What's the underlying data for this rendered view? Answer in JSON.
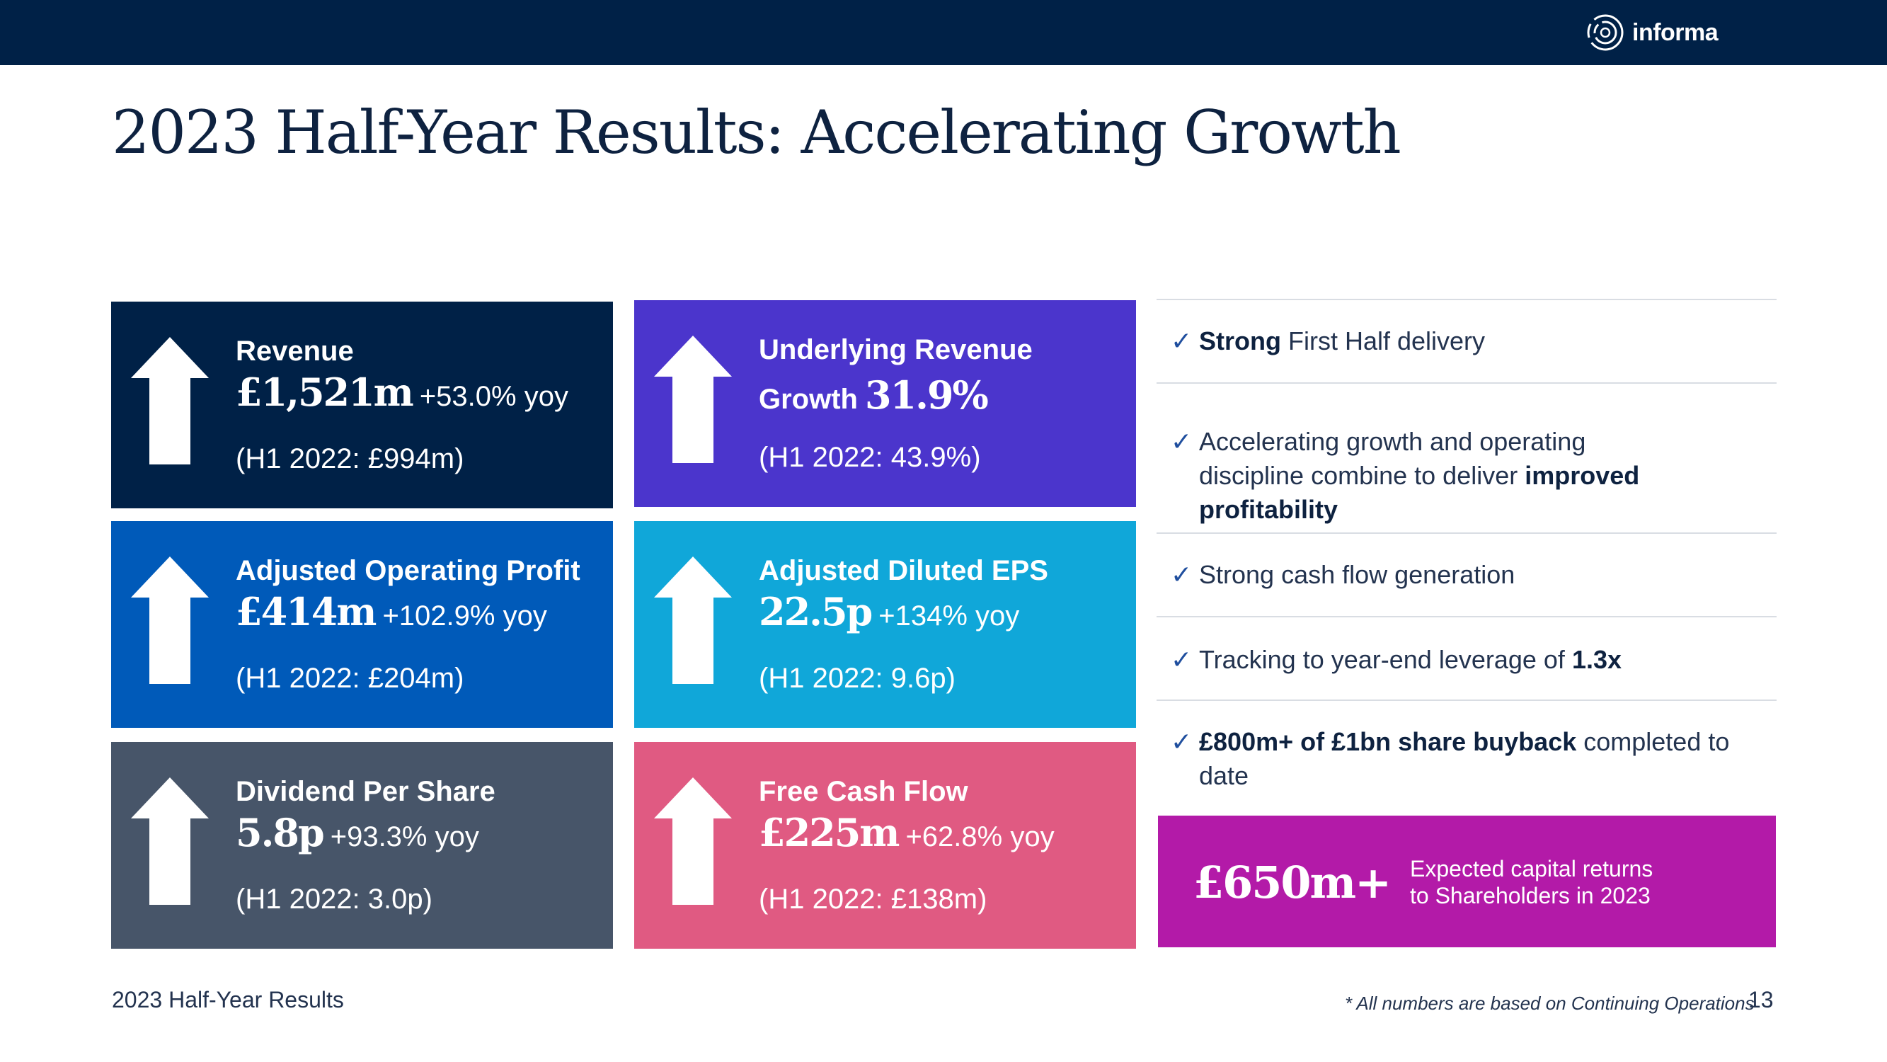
{
  "brand": {
    "name": "informa",
    "bar_color": "#002147"
  },
  "title": "2023 Half-Year Results: Accelerating Growth",
  "tiles": [
    {
      "label": "Revenue",
      "value": "£1,521m",
      "yoy": "+53.0% yoy",
      "prior": "(H1 2022: £994m)",
      "color": "#002147"
    },
    {
      "label": "Underlying Revenue",
      "label_cont": "Growth",
      "value": "31.9%",
      "prior": "(H1 2022: 43.9%)",
      "color": "#4b35cc"
    },
    {
      "label": "Adjusted Operating Profit",
      "value": "£414m",
      "yoy": "+102.9% yoy",
      "prior": "(H1 2022: £204m)",
      "color": "#005ab9"
    },
    {
      "label": "Adjusted Diluted EPS",
      "value": "22.5p",
      "yoy": "+134% yoy",
      "prior": "(H1 2022: 9.6p)",
      "color": "#10a7d9"
    },
    {
      "label": "Dividend Per Share",
      "value": "5.8p",
      "yoy": "+93.3% yoy",
      "prior": "(H1 2022: 3.0p)",
      "color": "#475569"
    },
    {
      "label": "Free Cash Flow",
      "value": "£225m",
      "yoy": "+62.8% yoy",
      "prior": "(H1 2022: £138m)",
      "color": "#e05a82"
    }
  ],
  "checklist": [
    {
      "bold": "Strong",
      "rest": " First Half delivery"
    },
    {
      "pre": "Accelerating growth and operating discipline combine to deliver ",
      "bold": "improved profitability"
    },
    {
      "pre": "Strong cash flow generation"
    },
    {
      "pre": "Tracking to year-end leverage of ",
      "bold": "1.3x"
    },
    {
      "bold": "£800m+ of £1bn share buyback",
      "rest": " completed to date"
    }
  ],
  "tick_symbol": "✓",
  "highlight": {
    "amount": "£650m+",
    "desc_line1": "Expected capital returns",
    "desc_line2": "to Shareholders in 2023",
    "color": "#b31aa8"
  },
  "footer": {
    "left": "2023 Half-Year Results",
    "note": "* All numbers are based on Continuing Operations",
    "page": "13"
  }
}
